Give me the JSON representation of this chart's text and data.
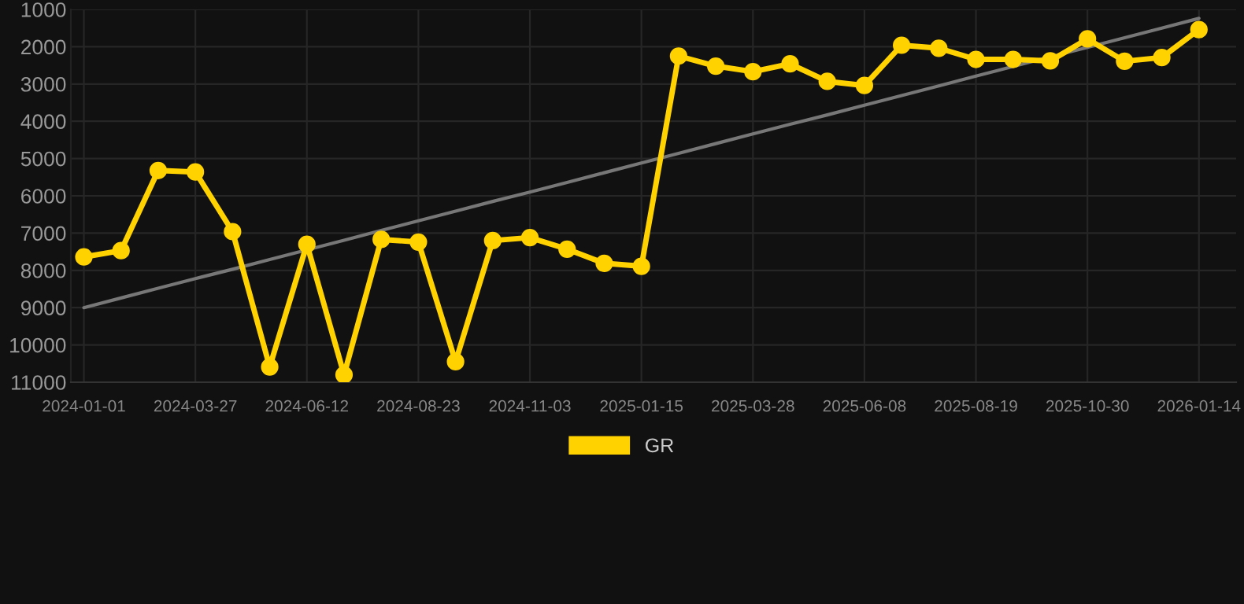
{
  "chart_data": {
    "type": "line",
    "categories": [
      "2024-01-01",
      null,
      null,
      "2024-03-27",
      null,
      null,
      "2024-06-12",
      null,
      null,
      "2024-08-23",
      null,
      null,
      "2024-11-03",
      null,
      null,
      "2025-01-15",
      null,
      null,
      "2025-03-28",
      null,
      null,
      "2025-06-08",
      null,
      null,
      "2025-08-19",
      null,
      null,
      "2025-10-30",
      null,
      null,
      "2026-01-14"
    ],
    "series": [
      {
        "name": "GR",
        "color": "#ffd200",
        "marker": "circle",
        "values": [
          7640,
          7470,
          5320,
          5360,
          6960,
          10590,
          7300,
          10800,
          7170,
          7240,
          10450,
          7200,
          7120,
          7430,
          7810,
          7890,
          2250,
          2520,
          2670,
          2460,
          2930,
          3040,
          1960,
          2040,
          2340,
          2340,
          2380,
          1790,
          2390,
          2290,
          1540
        ]
      },
      {
        "type": "line",
        "color": "#777777",
        "marker": "none",
        "values": [
          9000,
          8740,
          8480,
          8220,
          7970,
          7710,
          7450,
          7190,
          6930,
          6670,
          6410,
          6150,
          5900,
          5640,
          5380,
          5120,
          4860,
          4600,
          4340,
          4080,
          3830,
          3570,
          3310,
          3050,
          2790,
          2530,
          2270,
          2020,
          1760,
          1500,
          1240
        ]
      }
    ],
    "ylim": [
      11000,
      1000
    ],
    "yticks": [
      1000,
      2000,
      3000,
      4000,
      5000,
      6000,
      7000,
      8000,
      9000,
      10000,
      11000
    ],
    "grid": true,
    "legend": "bottom",
    "line_style": "solid"
  }
}
